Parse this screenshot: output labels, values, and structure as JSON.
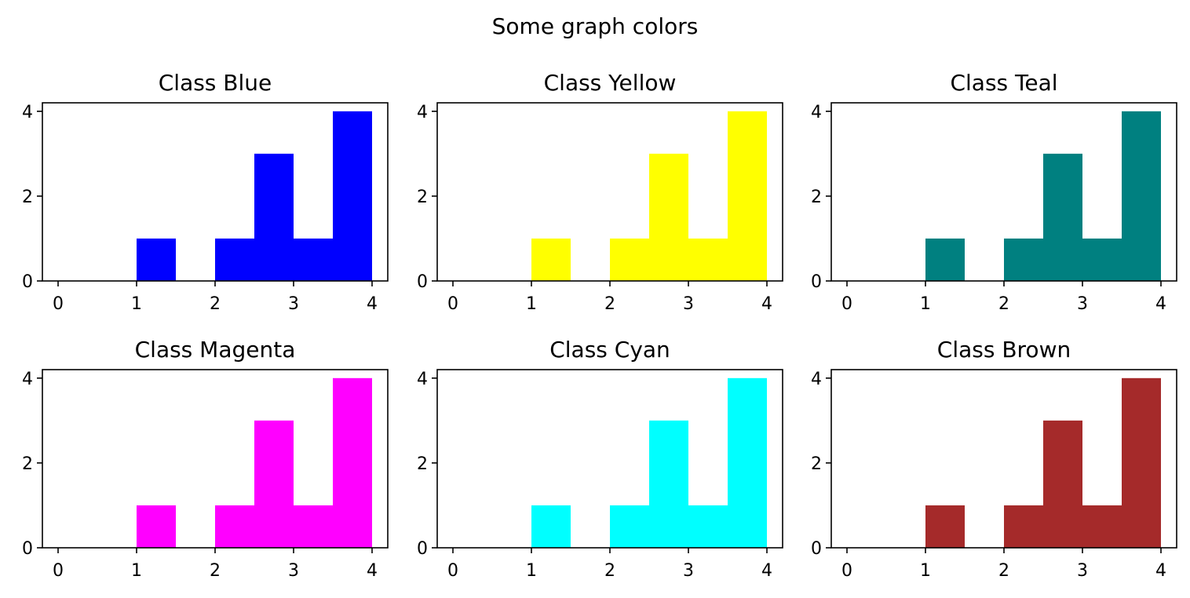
{
  "figure": {
    "title": "Some graph colors"
  },
  "chart_data": [
    {
      "type": "bar",
      "title": "Class Blue",
      "color": "#0000ff",
      "bin_edges": [
        0,
        0.5,
        1,
        1.5,
        2,
        2.5,
        3,
        3.5,
        4
      ],
      "values": [
        0,
        0,
        1,
        0,
        1,
        3,
        1,
        4
      ],
      "xlim": [
        -0.2,
        4.2
      ],
      "ylim": [
        0,
        4.2
      ],
      "xticks": [
        "0",
        "1",
        "2",
        "3",
        "4"
      ],
      "yticks": [
        "0",
        "2",
        "4"
      ]
    },
    {
      "type": "bar",
      "title": "Class Yellow",
      "color": "#ffff00",
      "bin_edges": [
        0,
        0.5,
        1,
        1.5,
        2,
        2.5,
        3,
        3.5,
        4
      ],
      "values": [
        0,
        0,
        1,
        0,
        1,
        3,
        1,
        4
      ],
      "xlim": [
        -0.2,
        4.2
      ],
      "ylim": [
        0,
        4.2
      ],
      "xticks": [
        "0",
        "1",
        "2",
        "3",
        "4"
      ],
      "yticks": [
        "0",
        "2",
        "4"
      ]
    },
    {
      "type": "bar",
      "title": "Class Teal",
      "color": "#008080",
      "bin_edges": [
        0,
        0.5,
        1,
        1.5,
        2,
        2.5,
        3,
        3.5,
        4
      ],
      "values": [
        0,
        0,
        1,
        0,
        1,
        3,
        1,
        4
      ],
      "xlim": [
        -0.2,
        4.2
      ],
      "ylim": [
        0,
        4.2
      ],
      "xticks": [
        "0",
        "1",
        "2",
        "3",
        "4"
      ],
      "yticks": [
        "0",
        "2",
        "4"
      ]
    },
    {
      "type": "bar",
      "title": "Class Magenta",
      "color": "#ff00ff",
      "bin_edges": [
        0,
        0.5,
        1,
        1.5,
        2,
        2.5,
        3,
        3.5,
        4
      ],
      "values": [
        0,
        0,
        1,
        0,
        1,
        3,
        1,
        4
      ],
      "xlim": [
        -0.2,
        4.2
      ],
      "ylim": [
        0,
        4.2
      ],
      "xticks": [
        "0",
        "1",
        "2",
        "3",
        "4"
      ],
      "yticks": [
        "0",
        "2",
        "4"
      ]
    },
    {
      "type": "bar",
      "title": "Class Cyan",
      "color": "#00ffff",
      "bin_edges": [
        0,
        0.5,
        1,
        1.5,
        2,
        2.5,
        3,
        3.5,
        4
      ],
      "values": [
        0,
        0,
        1,
        0,
        1,
        3,
        1,
        4
      ],
      "xlim": [
        -0.2,
        4.2
      ],
      "ylim": [
        0,
        4.2
      ],
      "xticks": [
        "0",
        "1",
        "2",
        "3",
        "4"
      ],
      "yticks": [
        "0",
        "2",
        "4"
      ]
    },
    {
      "type": "bar",
      "title": "Class Brown",
      "color": "#a52a2a",
      "bin_edges": [
        0,
        0.5,
        1,
        1.5,
        2,
        2.5,
        3,
        3.5,
        4
      ],
      "values": [
        0,
        0,
        1,
        0,
        1,
        3,
        1,
        4
      ],
      "xlim": [
        -0.2,
        4.2
      ],
      "ylim": [
        0,
        4.2
      ],
      "xticks": [
        "0",
        "1",
        "2",
        "3",
        "4"
      ],
      "yticks": [
        "0",
        "2",
        "4"
      ]
    }
  ]
}
